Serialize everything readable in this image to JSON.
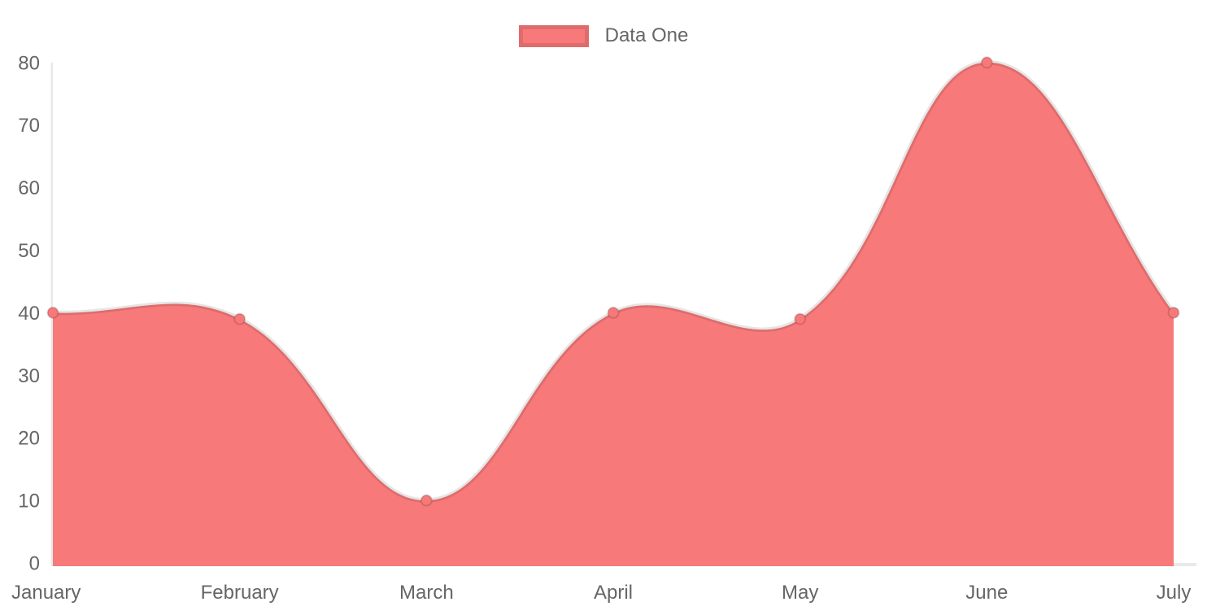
{
  "chart_data": {
    "type": "area",
    "title": "",
    "categories": [
      "January",
      "February",
      "March",
      "April",
      "May",
      "June",
      "July"
    ],
    "series": [
      {
        "name": "Data One",
        "values": [
          40,
          39,
          10,
          40,
          39,
          80,
          40
        ]
      }
    ],
    "xlabel": "",
    "ylabel": "",
    "ylim": [
      0,
      80
    ],
    "y_ticks": [
      0,
      10,
      20,
      30,
      40,
      50,
      60,
      70,
      80
    ],
    "grid": false,
    "legend_position": "top",
    "line_tension": 0.4,
    "colors": {
      "fill": "#f87979",
      "line": "rgba(0,0,0,0.10)",
      "point_fill": "#f87979",
      "point_border": "rgba(0,0,0,0.14)",
      "axis_line": "#e9e9e9",
      "tick_text": "#666666",
      "background": "#ffffff"
    }
  }
}
